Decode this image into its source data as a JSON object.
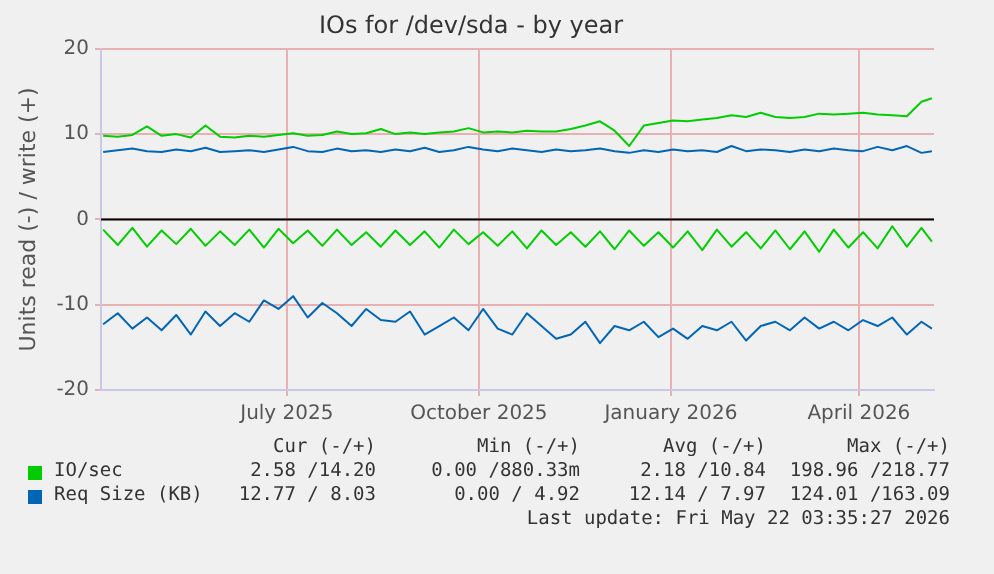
{
  "chart_data": {
    "type": "line",
    "title": "IOs for /dev/sda - by year",
    "ylabel": "Units read (-) / write (+)",
    "x": [
      "2025-04-19",
      "2025-04-26",
      "2025-05-03",
      "2025-05-10",
      "2025-05-17",
      "2025-05-24",
      "2025-05-31",
      "2025-06-07",
      "2025-06-14",
      "2025-06-21",
      "2025-06-28",
      "2025-07-05",
      "2025-07-12",
      "2025-07-19",
      "2025-07-26",
      "2025-08-02",
      "2025-08-09",
      "2025-08-16",
      "2025-08-23",
      "2025-08-30",
      "2025-09-06",
      "2025-09-13",
      "2025-09-20",
      "2025-09-27",
      "2025-10-04",
      "2025-10-11",
      "2025-10-18",
      "2025-10-25",
      "2025-11-01",
      "2025-11-08",
      "2025-11-15",
      "2025-11-22",
      "2025-11-29",
      "2025-12-06",
      "2025-12-13",
      "2025-12-20",
      "2025-12-27",
      "2026-01-03",
      "2026-01-10",
      "2026-01-17",
      "2026-01-24",
      "2026-01-31",
      "2026-02-07",
      "2026-02-14",
      "2026-02-21",
      "2026-02-28",
      "2026-03-07",
      "2026-03-14",
      "2026-03-21",
      "2026-03-28",
      "2026-04-04",
      "2026-04-11",
      "2026-04-18",
      "2026-04-25",
      "2026-05-02",
      "2026-05-09",
      "2026-05-16",
      "2026-05-21"
    ],
    "series": [
      {
        "name": "IO/sec",
        "color": "#00cc00",
        "values": [
          9.8,
          9.7,
          9.9,
          10.9,
          9.8,
          10.0,
          9.6,
          11.0,
          9.7,
          9.6,
          9.8,
          9.7,
          9.9,
          10.1,
          9.8,
          9.9,
          10.3,
          10.0,
          10.1,
          10.6,
          10.0,
          10.2,
          10.0,
          10.2,
          10.3,
          10.7,
          10.2,
          10.3,
          10.2,
          10.4,
          10.3,
          10.3,
          10.6,
          11.0,
          11.5,
          10.4,
          8.6,
          11.0,
          11.3,
          11.6,
          11.5,
          11.7,
          11.9,
          12.2,
          12.0,
          12.5,
          12.0,
          11.9,
          12.0,
          12.4,
          12.3,
          12.4,
          12.5,
          12.3,
          12.2,
          12.1,
          13.8,
          14.2
        ]
      },
      {
        "color": "#00cc00",
        "values": [
          -1.2,
          -3.0,
          -1.0,
          -3.2,
          -1.3,
          -2.9,
          -1.1,
          -3.1,
          -1.4,
          -3.0,
          -1.2,
          -3.3,
          -1.1,
          -2.8,
          -1.3,
          -3.1,
          -1.2,
          -3.0,
          -1.5,
          -3.2,
          -1.3,
          -3.0,
          -1.4,
          -3.3,
          -1.2,
          -2.9,
          -1.5,
          -3.1,
          -1.4,
          -3.4,
          -1.3,
          -3.0,
          -1.5,
          -3.2,
          -1.4,
          -3.5,
          -1.3,
          -3.1,
          -1.5,
          -3.3,
          -1.4,
          -3.6,
          -1.2,
          -3.2,
          -1.5,
          -3.4,
          -1.3,
          -3.5,
          -1.4,
          -3.8,
          -1.2,
          -3.3,
          -1.5,
          -3.4,
          -0.8,
          -3.2,
          -1.0,
          -2.6
        ]
      },
      {
        "name": "Req Size (KB)",
        "color": "#0066b3",
        "values": [
          7.9,
          8.1,
          8.3,
          8.0,
          7.9,
          8.2,
          8.0,
          8.4,
          7.9,
          8.0,
          8.1,
          7.9,
          8.2,
          8.5,
          8.0,
          7.9,
          8.3,
          8.0,
          8.1,
          7.9,
          8.2,
          8.0,
          8.4,
          7.9,
          8.1,
          8.5,
          8.2,
          8.0,
          8.3,
          8.1,
          7.9,
          8.2,
          8.0,
          8.1,
          8.3,
          8.0,
          7.8,
          8.1,
          7.9,
          8.2,
          8.0,
          8.1,
          7.9,
          8.6,
          8.0,
          8.2,
          8.1,
          7.9,
          8.2,
          8.0,
          8.3,
          8.1,
          8.0,
          8.5,
          8.1,
          8.6,
          7.8,
          8.0
        ]
      },
      {
        "color": "#0066b3",
        "values": [
          -12.3,
          -11.0,
          -12.8,
          -11.5,
          -13.0,
          -11.2,
          -13.5,
          -10.8,
          -12.5,
          -11.0,
          -12.0,
          -9.5,
          -10.5,
          -9.0,
          -11.5,
          -9.8,
          -11.0,
          -12.5,
          -10.5,
          -11.8,
          -12.0,
          -10.8,
          -13.5,
          -12.5,
          -11.5,
          -13.0,
          -10.5,
          -12.8,
          -13.5,
          -11.0,
          -12.5,
          -14.0,
          -13.5,
          -12.0,
          -14.5,
          -12.5,
          -13.0,
          -12.0,
          -13.8,
          -12.8,
          -14.0,
          -12.5,
          -13.0,
          -12.0,
          -14.2,
          -12.5,
          -12.0,
          -13.0,
          -11.5,
          -12.8,
          -12.0,
          -13.0,
          -11.8,
          -12.5,
          -11.5,
          -13.5,
          -12.0,
          -12.8
        ]
      }
    ],
    "xlim": [
      "2025-04-18",
      "2026-05-22"
    ],
    "xticks": [
      {
        "value": "2025-07-16",
        "label": "July 2025"
      },
      {
        "value": "2025-10-16",
        "label": "October 2025"
      },
      {
        "value": "2026-01-16",
        "label": "January 2026"
      },
      {
        "value": "2026-04-16",
        "label": "April 2026"
      }
    ],
    "ylim": [
      -20,
      20
    ],
    "yticks": [
      -20,
      -10,
      0,
      10,
      20
    ],
    "ref_lines": [
      {
        "axis": "y",
        "value": 0,
        "color": "#000000"
      }
    ],
    "grid": true,
    "legend": "bottom",
    "marker": "none",
    "line_style": "solid",
    "annotations": [
      "Cur (-/+)",
      "Min (-/+)",
      "Avg (-/+)",
      "Max (-/+)",
      "2.58 /14.20",
      "0.00 /880.33m",
      "2.18 /10.84",
      "198.96 /218.77",
      "12.77 / 8.03",
      "0.00 / 4.92",
      "12.14 / 7.97",
      "124.01 /163.09",
      "Last update: Fri May 22 03:35:27 2026"
    ]
  }
}
